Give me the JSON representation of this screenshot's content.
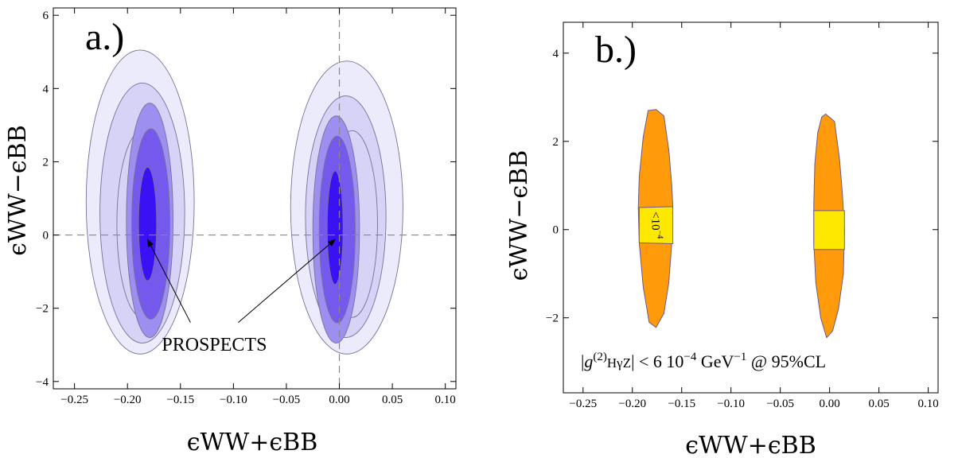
{
  "colors": {
    "contour_edge": "#7a6f99",
    "level1": "#ecebfb",
    "level2": "#d6d3f7",
    "level3": "#9d8ff0",
    "level4": "#7559ec",
    "core": "#3a10f5",
    "orange": "#ff9a0a",
    "yellow": "#ffe800",
    "region_edge": "#6d5a8c",
    "dash": "#888888"
  },
  "chart_data": [
    {
      "type": "contour",
      "panel_label": "a.)",
      "xlabel": "ϵWW+ϵBB",
      "ylabel": "ϵWW−ϵBB",
      "xlim": [
        -0.27,
        0.11
      ],
      "ylim": [
        -4.2,
        6.2
      ],
      "xticks": [
        -0.25,
        -0.2,
        -0.15,
        -0.1,
        -0.05,
        0.0,
        0.05,
        0.1
      ],
      "xtick_labels": [
        "−0.25",
        "−0.20",
        "−0.15",
        "−0.10",
        "−0.05",
        "0.00",
        "0.05",
        "0.10"
      ],
      "yticks": [
        -4,
        -2,
        0,
        2,
        4,
        6
      ],
      "ytick_labels": [
        "−4",
        "−2",
        "0",
        "2",
        "4",
        "6"
      ],
      "reference_lines": {
        "x": 0,
        "y": 0
      },
      "annotation": {
        "text": "PROSPECTS",
        "text_at": [
          -0.118,
          -3.04
        ],
        "arrows_to": [
          [
            -0.181,
            -0.12
          ],
          [
            -0.004,
            -0.12
          ]
        ]
      },
      "ellipses": [
        {
          "cx": -0.188,
          "cy": 0.9,
          "rx": 0.051,
          "ry": 4.15,
          "level": "level1"
        },
        {
          "cx": -0.186,
          "cy": 0.6,
          "rx": 0.04,
          "ry": 3.55,
          "level": "level2"
        },
        {
          "cx": -0.186,
          "cy": 0.3,
          "rx": 0.024,
          "ry": 2.55,
          "level": "level2"
        },
        {
          "cx": -0.179,
          "cy": 0.4,
          "rx": 0.022,
          "ry": 3.2,
          "level": "level3"
        },
        {
          "cx": -0.178,
          "cy": 0.3,
          "rx": 0.018,
          "ry": 2.6,
          "level": "level4"
        },
        {
          "cx": -0.181,
          "cy": 0.3,
          "rx": 0.0085,
          "ry": 1.55,
          "level": "core"
        },
        {
          "cx": 0.007,
          "cy": 0.75,
          "rx": 0.053,
          "ry": 4.0,
          "level": "level1"
        },
        {
          "cx": 0.006,
          "cy": 0.5,
          "rx": 0.038,
          "ry": 3.3,
          "level": "level2"
        },
        {
          "cx": 0.012,
          "cy": 0.3,
          "rx": 0.024,
          "ry": 2.55,
          "level": "level2"
        },
        {
          "cx": -0.003,
          "cy": 0.15,
          "rx": 0.022,
          "ry": 3.1,
          "level": "level3"
        },
        {
          "cx": -0.002,
          "cy": 0.15,
          "rx": 0.017,
          "ry": 2.55,
          "level": "level4"
        },
        {
          "cx": -0.004,
          "cy": 0.2,
          "rx": 0.0075,
          "ry": 1.55,
          "level": "core"
        }
      ]
    },
    {
      "type": "region",
      "panel_label": "b.)",
      "xlabel": "ϵWW+ϵBB",
      "ylabel": "ϵWW−ϵBB",
      "xlim": [
        -0.27,
        0.11
      ],
      "ylim": [
        -3.7,
        4.7
      ],
      "xticks": [
        -0.25,
        -0.2,
        -0.15,
        -0.1,
        -0.05,
        0.0,
        0.05,
        0.1
      ],
      "xtick_labels": [
        "−0.25",
        "−0.20",
        "−0.15",
        "−0.10",
        "−0.05",
        "0.00",
        "0.05",
        "0.10"
      ],
      "yticks": [
        -2,
        0,
        2,
        4
      ],
      "ytick_labels": [
        "−2",
        "0",
        "2",
        "4"
      ],
      "contour_label": "<10",
      "contour_label_exp": "−4",
      "formula": {
        "pre": "|",
        "g": "g",
        "sup": "(2)",
        "sub": "HγZ",
        "post": "| < 6 10",
        "exp1": "−4",
        "unit": " GeV",
        "exp2": "−1",
        "tail": " @ 95%CL"
      },
      "regions": [
        {
          "color": "orange",
          "points": [
            [
              -0.176,
              2.72
            ],
            [
              -0.168,
              2.58
            ],
            [
              -0.163,
              1.8
            ],
            [
              -0.16,
              1.0
            ],
            [
              -0.159,
              0.5
            ],
            [
              -0.16,
              -0.3
            ],
            [
              -0.163,
              -1.2
            ],
            [
              -0.168,
              -1.9
            ],
            [
              -0.176,
              -2.22
            ],
            [
              -0.183,
              -2.1
            ],
            [
              -0.189,
              -1.3
            ],
            [
              -0.193,
              -0.3
            ],
            [
              -0.194,
              0.5
            ],
            [
              -0.193,
              1.2
            ],
            [
              -0.189,
              2.1
            ],
            [
              -0.184,
              2.7
            ]
          ]
        },
        {
          "color": "orange",
          "points": [
            [
              -0.004,
              2.62
            ],
            [
              0.005,
              2.45
            ],
            [
              0.01,
              1.6
            ],
            [
              0.013,
              0.8
            ],
            [
              0.015,
              0.0
            ],
            [
              0.014,
              -1.0
            ],
            [
              0.009,
              -1.8
            ],
            [
              0.003,
              -2.3
            ],
            [
              -0.003,
              -2.45
            ],
            [
              -0.009,
              -2.0
            ],
            [
              -0.014,
              -1.2
            ],
            [
              -0.016,
              -0.3
            ],
            [
              -0.016,
              0.6
            ],
            [
              -0.015,
              1.5
            ],
            [
              -0.012,
              2.2
            ],
            [
              -0.008,
              2.55
            ]
          ]
        },
        {
          "color": "yellow",
          "points": [
            [
              -0.193,
              0.5
            ],
            [
              -0.159,
              0.52
            ],
            [
              -0.159,
              -0.32
            ],
            [
              -0.193,
              -0.3
            ]
          ]
        },
        {
          "color": "yellow",
          "points": [
            [
              -0.016,
              0.43
            ],
            [
              0.015,
              0.43
            ],
            [
              0.015,
              -0.45
            ],
            [
              -0.016,
              -0.45
            ]
          ]
        }
      ]
    }
  ]
}
